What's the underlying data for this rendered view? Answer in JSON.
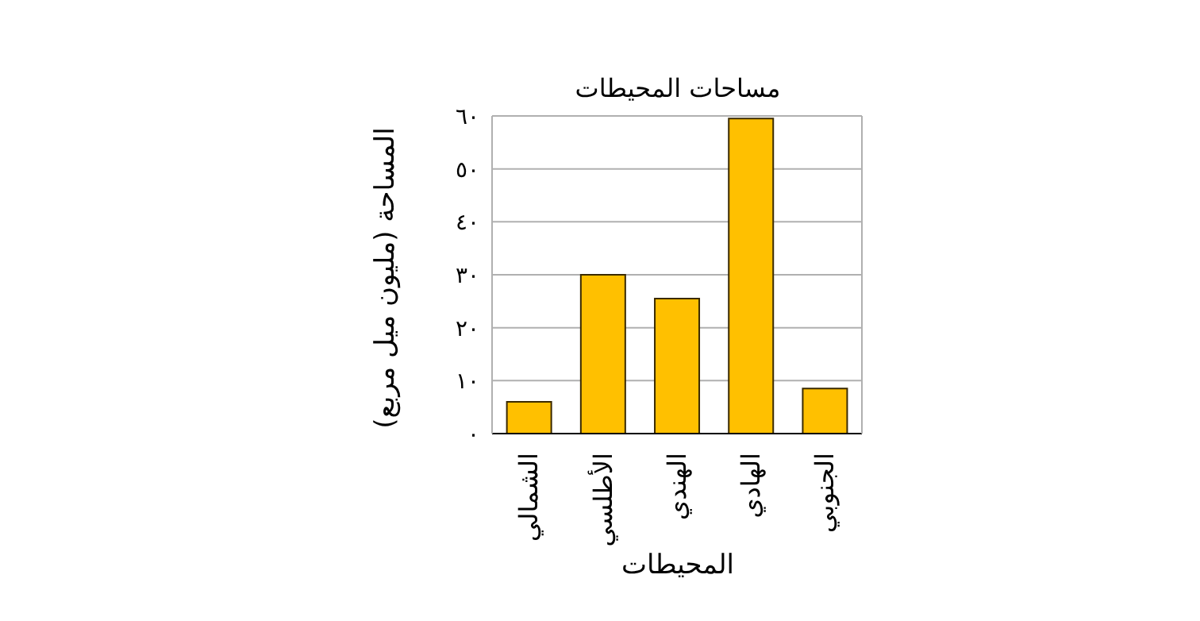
{
  "chart_data": {
    "type": "bar",
    "title": "مساحات المحيطات",
    "xlabel": "المحيطات",
    "ylabel": "المساحة (مليون ميل مربع)",
    "categories": [
      "الشمالي",
      "الأطلسي",
      "الهندي",
      "الهادي",
      "الجنوبي"
    ],
    "values": [
      6,
      30,
      25.5,
      59.5,
      8.5
    ],
    "color": "#ffc000",
    "ylim": [
      0,
      60
    ],
    "yticks": [
      {
        "value": 0,
        "label": "٠"
      },
      {
        "value": 10,
        "label": "١٠"
      },
      {
        "value": 20,
        "label": "٢٠"
      },
      {
        "value": 30,
        "label": "٣٠"
      },
      {
        "value": 40,
        "label": "٤٠"
      },
      {
        "value": 50,
        "label": "٥٠"
      },
      {
        "value": 60,
        "label": "٦٠"
      }
    ],
    "grid": "y"
  }
}
